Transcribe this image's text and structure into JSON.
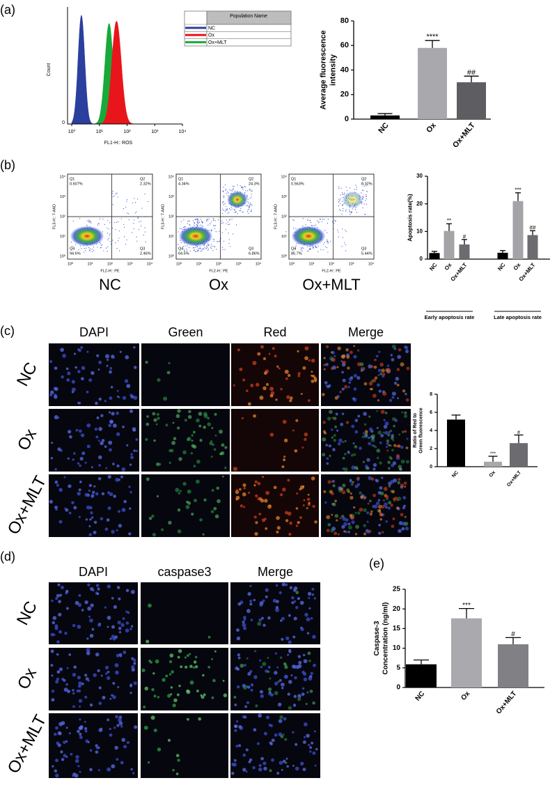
{
  "panel_labels": [
    "(a)",
    "(b)",
    "(c)",
    "(d)",
    "(e)"
  ],
  "histogram": {
    "legend_header": "Population Name",
    "legend": [
      "NC",
      "Ox",
      "Ox+MLT"
    ],
    "colors": [
      "#2b3f9e",
      "#e8161b",
      "#18a93a"
    ],
    "x_label": "FL1-H:: ROS",
    "y_label": "Count",
    "x_ticks": [
      "10⁰",
      "10¹",
      "10²",
      "10³",
      "10⁴"
    ],
    "y_ticks": [
      "0"
    ]
  },
  "flow": {
    "x_label": "FL2-H:: PE",
    "y_label": "FL3-H:: 7-AAD",
    "x_ticks": [
      "10⁰",
      "10¹",
      "10²",
      "10³",
      "10⁴"
    ],
    "y_ticks": [
      "10⁰",
      "10¹",
      "10²",
      "10³",
      "10⁴"
    ],
    "plots": [
      {
        "name": "NC",
        "quadrants": [
          "Q1",
          "Q2",
          "Q3",
          "Q4"
        ],
        "percents": [
          "0.607%",
          "2.32%",
          "2.46%",
          "94.6%"
        ]
      },
      {
        "name": "Ox",
        "quadrants": [
          "Q1",
          "Q2",
          "Q3",
          "Q4"
        ],
        "percents": [
          "4.34%",
          "24.3%",
          "6.86%",
          "64.5%"
        ]
      },
      {
        "name": "Ox+MLT",
        "quadrants": [
          "Q1",
          "Q2",
          "Q3",
          "Q4"
        ],
        "percents": [
          "0.563%",
          "8.32%",
          "5.44%",
          "85.7%"
        ]
      }
    ]
  },
  "microscopy_c": {
    "columns": [
      "DAPI",
      "Green",
      "Red",
      "Merge"
    ],
    "rows": [
      "NC",
      "Ox",
      "Ox+MLT"
    ]
  },
  "microscopy_d": {
    "columns": [
      "DAPI",
      "caspase3",
      "Merge"
    ],
    "rows": [
      "NC",
      "Ox",
      "Ox+MLT"
    ]
  },
  "chart_data": [
    {
      "type": "bar",
      "y_label": [
        "Average fluorescence",
        "intensity"
      ],
      "categories": [
        "NC",
        "Ox",
        "Ox+MLT"
      ],
      "values": [
        3,
        58,
        30
      ],
      "errors": [
        1.5,
        6,
        5
      ],
      "annotations": [
        null,
        "****",
        "##"
      ],
      "colors": [
        "#000000",
        "#a9a9ad",
        "#5d5d62"
      ],
      "ylim": [
        0,
        80
      ],
      "yticks": [
        0,
        20,
        40,
        60,
        80
      ]
    },
    {
      "type": "grouped_bar",
      "y_label": [
        "Apoptosis rate(%)"
      ],
      "categories": [
        "NC",
        "Ox",
        "Ox+MLT"
      ],
      "groups": [
        {
          "name": "Early apoptosis rate",
          "values": [
            2.2,
            10.2,
            5.3
          ],
          "errors": [
            0.6,
            2.6,
            1.8
          ],
          "annotations": [
            null,
            "**",
            "#"
          ]
        },
        {
          "name": "Late apoptosis rate",
          "values": [
            2.3,
            21,
            8.7
          ],
          "errors": [
            0.8,
            3,
            1.6
          ],
          "annotations": [
            null,
            "***",
            "##"
          ]
        }
      ],
      "colors": [
        "#000000",
        "#a4a4a8",
        "#6b6b70"
      ],
      "ylim": [
        0,
        30
      ],
      "yticks": [
        0,
        10,
        20,
        30
      ]
    },
    {
      "type": "bar",
      "y_label": [
        "Ratio of Red to",
        "Green fluorescence"
      ],
      "categories": [
        "NC",
        "Ox",
        "Ox+MLT"
      ],
      "values": [
        5.2,
        0.55,
        2.6
      ],
      "errors": [
        0.5,
        0.6,
        0.9
      ],
      "annotations": [
        null,
        "***",
        "#"
      ],
      "colors": [
        "#000000",
        "#a9a9ad",
        "#6b6b70"
      ],
      "ylim": [
        0,
        8
      ],
      "yticks": [
        0,
        2,
        4,
        6,
        8
      ]
    },
    {
      "type": "bar",
      "y_label": [
        "Caspase-3",
        "Concentration (ng/ml)"
      ],
      "categories": [
        "NC",
        "Ox",
        "Ox+MLT"
      ],
      "values": [
        5.9,
        17.6,
        11
      ],
      "errors": [
        1.1,
        2.5,
        1.7
      ],
      "annotations": [
        null,
        "***",
        "#"
      ],
      "colors": [
        "#000000",
        "#aaaaae",
        "#808085"
      ],
      "ylim": [
        0,
        25
      ],
      "yticks": [
        0,
        5,
        10,
        15,
        20,
        25
      ]
    }
  ]
}
